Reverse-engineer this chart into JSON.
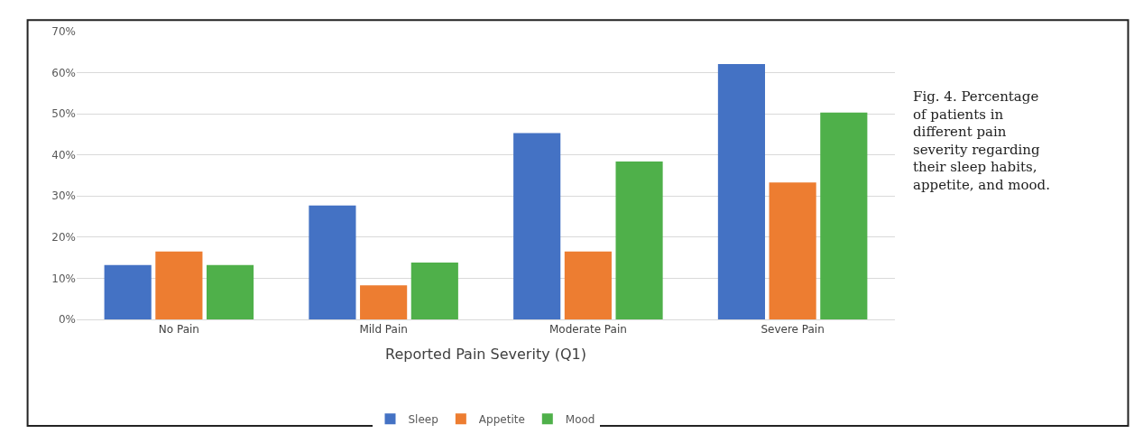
{
  "chart_data": {
    "type": "bar",
    "categories": [
      "No Pain",
      "Mild Pain",
      "Moderate Pain",
      "Severe Pain"
    ],
    "xlabel": "Reported Pain Severity (Q1)",
    "series": [
      {
        "name": "Sleep",
        "color": "#4472c4",
        "values": [
          13.2,
          27.7,
          45.3,
          62.1
        ]
      },
      {
        "name": "Appetite",
        "color": "#ed7d31",
        "values": [
          16.5,
          8.3,
          16.5,
          33.3
        ]
      },
      {
        "name": "Mood",
        "color": "#4fb04a",
        "values": [
          13.2,
          13.8,
          38.4,
          50.3
        ]
      }
    ],
    "ylim": [
      0,
      70
    ],
    "yticks": [
      {
        "value": 0,
        "label": "0%"
      },
      {
        "value": 10,
        "label": "10%"
      },
      {
        "value": 20,
        "label": "20%"
      },
      {
        "value": 30,
        "label": "30%"
      },
      {
        "value": 40,
        "label": "40%"
      },
      {
        "value": 50,
        "label": "50%"
      },
      {
        "value": 60,
        "label": "60%"
      },
      {
        "value": 70,
        "label": "70%"
      }
    ],
    "grid": "y",
    "legend": "bottom",
    "annotations": [
      "Fig. 4. Percentage of patients in different pain severity regarding their sleep habits, appetite, and mood."
    ]
  }
}
